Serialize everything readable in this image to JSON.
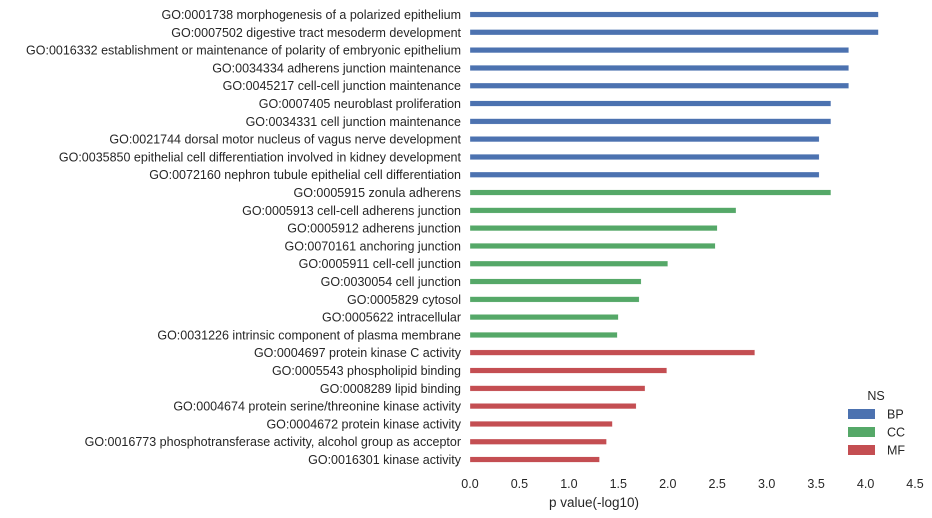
{
  "chart_data": {
    "type": "bar",
    "orientation": "horizontal",
    "xlabel": "p value(-log10)",
    "xlim": [
      0,
      4.5
    ],
    "xticks": [
      "0.0",
      "0.5",
      "1.0",
      "1.5",
      "2.0",
      "2.5",
      "3.0",
      "3.5",
      "4.0",
      "4.5"
    ],
    "grid": false,
    "legend": {
      "title": "NS",
      "placement": "bottom-right",
      "entries": [
        {
          "name": "BP",
          "color": "#4c72b0"
        },
        {
          "name": "CC",
          "color": "#55a868"
        },
        {
          "name": "MF",
          "color": "#c44e52"
        }
      ]
    },
    "categories": [
      "GO:0001738 morphogenesis of a polarized epithelium",
      "GO:0007502 digestive tract mesoderm development",
      "GO:0016332 establishment or maintenance of polarity of embryonic epithelium",
      "GO:0034334 adherens junction maintenance",
      "GO:0045217 cell-cell junction maintenance",
      "GO:0007405 neuroblast proliferation",
      "GO:0034331 cell junction maintenance",
      "GO:0021744 dorsal motor nucleus of vagus nerve development",
      "GO:0035850 epithelial cell differentiation involved in kidney development",
      "GO:0072160 nephron tubule epithelial cell differentiation",
      "GO:0005915 zonula adherens",
      "GO:0005913 cell-cell adherens junction",
      "GO:0005912 adherens junction",
      "GO:0070161 anchoring junction",
      "GO:0005911 cell-cell junction",
      "GO:0030054 cell junction",
      "GO:0005829 cytosol",
      "GO:0005622 intracellular",
      "GO:0031226 intrinsic component of plasma membrane",
      "GO:0004697 protein kinase C activity",
      "GO:0005543 phospholipid binding",
      "GO:0008289 lipid binding",
      "GO:0004674 protein serine/threonine kinase activity",
      "GO:0004672 protein kinase activity",
      "GO:0016773 phosphotransferase activity, alcohol group as acceptor",
      "GO:0016301 kinase activity"
    ],
    "groups": [
      "BP",
      "BP",
      "BP",
      "BP",
      "BP",
      "BP",
      "BP",
      "BP",
      "BP",
      "BP",
      "CC",
      "CC",
      "CC",
      "CC",
      "CC",
      "CC",
      "CC",
      "CC",
      "CC",
      "MF",
      "MF",
      "MF",
      "MF",
      "MF",
      "MF",
      "MF"
    ],
    "values": [
      4.13,
      4.13,
      3.83,
      3.83,
      3.83,
      3.65,
      3.65,
      3.53,
      3.53,
      3.53,
      3.65,
      2.69,
      2.5,
      2.48,
      2.0,
      1.73,
      1.71,
      1.5,
      1.49,
      2.88,
      1.99,
      1.77,
      1.68,
      1.44,
      1.38,
      1.31
    ]
  }
}
